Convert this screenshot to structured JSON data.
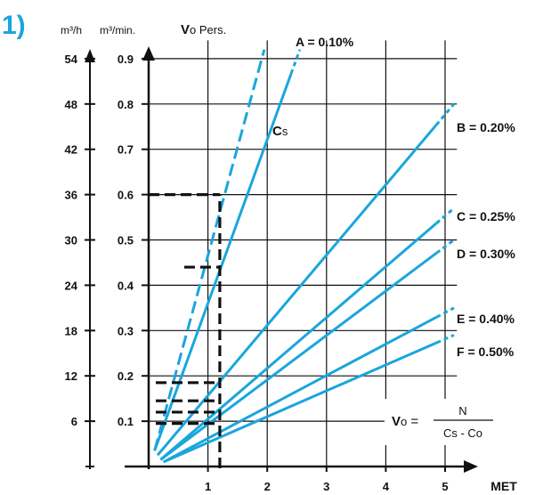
{
  "chart_data": {
    "type": "line",
    "figure_number": "1)",
    "y_units": [
      "m³/h",
      "m³/min."
    ],
    "vo_label_bold": "V",
    "vo_label_rest": "o Pers.",
    "cs_label_bold": "C",
    "cs_label_rest": "s",
    "xlabel": "MET",
    "xlim": [
      0,
      5.2
    ],
    "ylim": [
      0,
      0.96
    ],
    "x_ticks": [
      "1",
      "2",
      "3",
      "4",
      "5"
    ],
    "x_tick_values": [
      1,
      2,
      3,
      4,
      5
    ],
    "y_ticks_m3min": [
      "0.1",
      "0.2",
      "0.3",
      "0.4",
      "0.5",
      "0.6",
      "0.7",
      "0.8",
      "0.9"
    ],
    "y_ticks_m3h": [
      "6",
      "12",
      "18",
      "24",
      "30",
      "36",
      "42",
      "48",
      "54"
    ],
    "y_tick_values": [
      0.1,
      0.2,
      0.3,
      0.4,
      0.5,
      0.6,
      0.7,
      0.8,
      0.9
    ],
    "grid": true,
    "series": [
      {
        "label_letter": "A",
        "label_rest": "= 0.10%",
        "points": [
          [
            0.1,
            0.035
          ],
          [
            2.55,
            0.92
          ]
        ],
        "dashed_ends": true
      },
      {
        "label_letter": "B",
        "label_rest": "= 0.20%",
        "points": [
          [
            0.15,
            0.025
          ],
          [
            5.15,
            0.8
          ]
        ],
        "dashed_ends": true
      },
      {
        "label_letter": "C",
        "label_rest": "= 0.25%",
        "points": [
          [
            0.2,
            0.015
          ],
          [
            5.15,
            0.57
          ]
        ],
        "dashed_ends": true
      },
      {
        "label_letter": "D",
        "label_rest": "= 0.30%",
        "points": [
          [
            0.2,
            0.015
          ],
          [
            5.15,
            0.5
          ]
        ],
        "dashed_ends": true
      },
      {
        "label_letter": "E",
        "label_rest": "= 0.40%",
        "points": [
          [
            0.25,
            0.01
          ],
          [
            5.15,
            0.35
          ]
        ],
        "dashed_ends": true
      },
      {
        "label_letter": "F",
        "label_rest": "= 0.50%",
        "points": [
          [
            0.25,
            0.01
          ],
          [
            5.15,
            0.29
          ]
        ],
        "dashed_ends": true
      },
      {
        "label_letter": "",
        "label_rest": "",
        "points": [
          [
            0.1,
            0.035
          ],
          [
            1.95,
            0.92
          ]
        ],
        "dashed": true
      }
    ],
    "reference_x": 1.2,
    "reference_levels": [
      0.6,
      0.44,
      0.185,
      0.145,
      0.12,
      0.095
    ],
    "formula": {
      "lhs_bold": "V",
      "lhs_rest": "o =",
      "numerator": "N",
      "denominator": "Cs - Co"
    },
    "colors": {
      "line": "#1aa6dc",
      "reference": "#111111",
      "grid": "#111111"
    }
  }
}
